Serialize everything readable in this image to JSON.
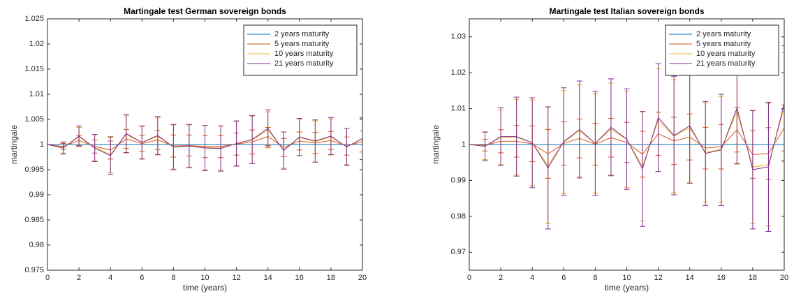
{
  "chart_data": [
    {
      "type": "line",
      "title": "Martingale test German sovereign bonds",
      "x_label": "time (years)",
      "y_label": "martingale",
      "x": [
        0,
        1,
        2,
        3,
        4,
        5,
        6,
        7,
        8,
        9,
        10,
        11,
        12,
        13,
        14,
        15,
        16,
        17,
        18,
        19,
        20
      ],
      "xlim": [
        0,
        20
      ],
      "xticks": [
        0,
        2,
        4,
        6,
        8,
        10,
        12,
        14,
        16,
        18,
        20
      ],
      "ylim": [
        0.975,
        1.025
      ],
      "yticks": [
        0.975,
        0.98,
        0.985,
        0.99,
        0.995,
        1,
        1.005,
        1.01,
        1.015,
        1.02,
        1.025
      ],
      "legend": "upper right",
      "series": [
        {
          "name": "2 years maturity",
          "color": "#0072BD",
          "values": [
            1,
            1,
            1,
            1,
            1,
            1,
            1,
            1,
            1,
            1,
            1,
            1,
            1,
            1,
            1,
            1,
            1,
            1,
            1,
            1,
            1
          ],
          "errors": [
            0,
            0,
            0,
            0,
            0,
            0,
            0,
            0,
            0,
            0,
            0,
            0,
            0,
            0,
            0,
            0,
            0,
            0,
            0,
            0,
            0
          ]
        },
        {
          "name": "5 years maturity",
          "color": "#D95319",
          "values": [
            1,
            0.9996,
            1.0008,
            0.9996,
            0.9989,
            1.0011,
            1.0002,
            1.0009,
            0.9997,
            0.9998,
            0.9996,
            0.9996,
            1.0001,
            1.0005,
            1.0016,
            0.9994,
            1.0007,
            1.0003,
            1.0008,
            0.9997,
            1.0006
          ],
          "errors": [
            0,
            0.0006,
            0.001,
            0.0013,
            0.0018,
            0.0019,
            0.0016,
            0.0019,
            0.0022,
            0.0021,
            0.0022,
            0.0022,
            0.0022,
            0.0024,
            0.0018,
            0.0018,
            0.0018,
            0.0021,
            0.0018,
            0.0018,
            0.0021
          ]
        },
        {
          "name": "10 years maturity",
          "color": "#EDB120",
          "values": [
            1,
            0.9994,
            1.0015,
            0.9994,
            0.998,
            1.002,
            1.0004,
            1.0016,
            0.9995,
            0.9997,
            0.9994,
            0.9993,
            1.0002,
            1.0009,
            1.0029,
            0.9989,
            1.0014,
            1.0006,
            1.0015,
            0.9996,
            1.0011
          ],
          "errors": [
            0,
            0.0011,
            0.0019,
            0.0026,
            0.0036,
            0.0037,
            0.0032,
            0.0037,
            0.0044,
            0.0042,
            0.0044,
            0.0044,
            0.0044,
            0.0047,
            0.0036,
            0.0036,
            0.0036,
            0.0041,
            0.0036,
            0.0036,
            0.0041
          ]
        },
        {
          "name": "21 years maturity",
          "color": "#7E2F8E",
          "values": [
            1,
            0.9993,
            1.0017,
            0.9993,
            0.9978,
            1.0022,
            1.0004,
            1.0018,
            0.9995,
            0.9997,
            0.9993,
            0.9992,
            1.0002,
            1.001,
            1.0032,
            0.9988,
            1.0015,
            1.0007,
            1.0017,
            0.9995,
            1.0012
          ],
          "errors": [
            0,
            0.0012,
            0.002,
            0.0027,
            0.0037,
            0.0038,
            0.0033,
            0.0038,
            0.0045,
            0.0043,
            0.0045,
            0.0045,
            0.0045,
            0.0048,
            0.0037,
            0.0037,
            0.0037,
            0.0042,
            0.0037,
            0.0037,
            0.0042
          ]
        }
      ]
    },
    {
      "type": "line",
      "title": "Martingale test Italian sovereign bonds",
      "x_label": "time (years)",
      "y_label": "martingale",
      "x": [
        0,
        1,
        2,
        3,
        4,
        5,
        6,
        7,
        8,
        9,
        10,
        11,
        12,
        13,
        14,
        15,
        16,
        17,
        18,
        19,
        20
      ],
      "xlim": [
        0,
        20
      ],
      "xticks": [
        0,
        2,
        4,
        6,
        8,
        10,
        12,
        14,
        16,
        18,
        20
      ],
      "ylim": [
        0.965,
        1.035
      ],
      "yticks": [
        0.97,
        0.98,
        0.99,
        1,
        1.01,
        1.02,
        1.03
      ],
      "legend": "upper right",
      "series": [
        {
          "name": "2 years maturity",
          "color": "#0072BD",
          "values": [
            1,
            1,
            1,
            1,
            1,
            1,
            1,
            1,
            1,
            1,
            1,
            1,
            1,
            1,
            1,
            1,
            1,
            1,
            1,
            1,
            1
          ],
          "errors": [
            0,
            0,
            0,
            0,
            0,
            0,
            0,
            0,
            0,
            0,
            0,
            0,
            0,
            0,
            0,
            0,
            0,
            0,
            0,
            0,
            0
          ]
        },
        {
          "name": "5 years maturity",
          "color": "#D95319",
          "values": [
            1,
            0.9998,
            1.0009,
            1.0009,
            1.0002,
            0.9974,
            1.0003,
            1.0017,
            1.0001,
            1.0019,
            1.0006,
            0.9973,
            1.003,
            1.001,
            1.0021,
            0.999,
            0.9994,
            1.0041,
            0.9972,
            0.9975,
            1.0046
          ],
          "errors": [
            0,
            0.0016,
            0.0032,
            0.0044,
            0.005,
            0.0068,
            0.006,
            0.0054,
            0.0058,
            0.0054,
            0.0056,
            0.0064,
            0.006,
            0.0066,
            0.0064,
            0.0058,
            0.0062,
            0.0062,
            0.0066,
            0.0072,
            0.0064
          ]
        },
        {
          "name": "10 years maturity",
          "color": "#EDB120",
          "values": [
            1,
            0.9996,
            1.002,
            1.002,
            1.0005,
            0.9942,
            1.0007,
            1.0038,
            1.0003,
            1.0043,
            1.0014,
            0.9939,
            1.0068,
            1.0023,
            1.0047,
            0.9978,
            0.9987,
            1.0092,
            0.9937,
            0.9944,
            1.0104
          ],
          "errors": [
            0,
            0.0038,
            0.0076,
            0.0105,
            0.0119,
            0.0162,
            0.0143,
            0.0128,
            0.0138,
            0.0128,
            0.0133,
            0.0152,
            0.0143,
            0.0157,
            0.0152,
            0.0138,
            0.0147,
            0.0147,
            0.0157,
            0.0171,
            0.0152
          ]
        },
        {
          "name": "21 years maturity",
          "color": "#7E2F8E",
          "values": [
            1,
            0.9995,
            1.0022,
            1.0022,
            1.0005,
            0.9935,
            1.0008,
            1.0042,
            1.0003,
            1.0048,
            1.0015,
            0.9932,
            1.0075,
            1.0025,
            1.0052,
            0.9975,
            0.9985,
            1.0102,
            0.993,
            0.9938,
            1.0115
          ],
          "errors": [
            0,
            0.004,
            0.008,
            0.011,
            0.0125,
            0.017,
            0.015,
            0.0135,
            0.0145,
            0.0135,
            0.014,
            0.016,
            0.015,
            0.0165,
            0.016,
            0.0145,
            0.0155,
            0.0155,
            0.0165,
            0.018,
            0.016
          ]
        }
      ]
    }
  ]
}
